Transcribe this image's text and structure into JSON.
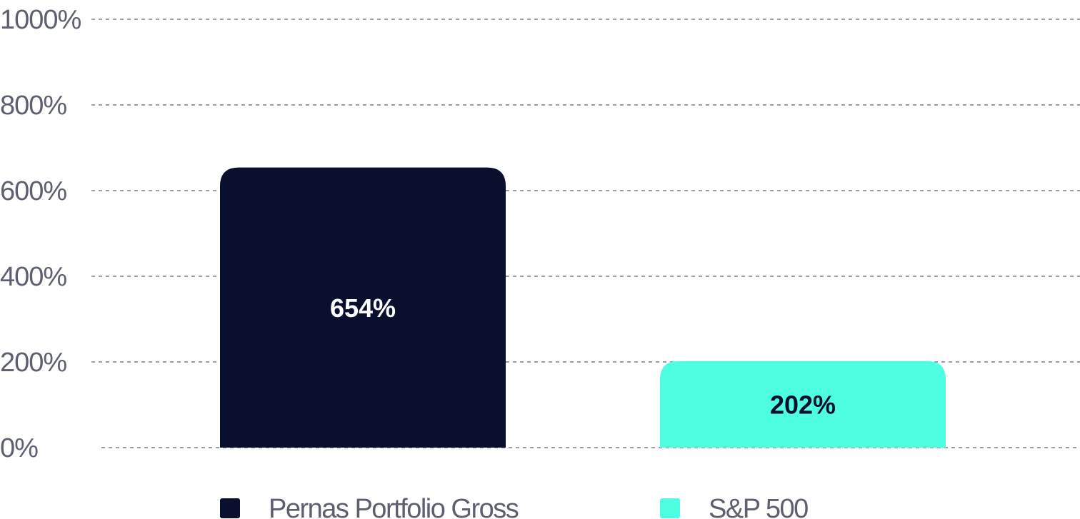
{
  "chart_data": {
    "type": "bar",
    "categories": [
      "Pernas Portfolio Gross",
      "S&P 500"
    ],
    "values": [
      654,
      202
    ],
    "value_labels": [
      "654%",
      "202%"
    ],
    "bar_colors": [
      "#0a0f2e",
      "#4dffe0"
    ],
    "label_colors": [
      "#ffffff",
      "#0a0f2e"
    ],
    "title": "",
    "xlabel": "",
    "ylabel": "",
    "ylim": [
      0,
      1000
    ],
    "yticks": [
      0,
      200,
      400,
      600,
      800,
      1000
    ],
    "ytick_labels": [
      "0%",
      "200%",
      "400%",
      "600%",
      "800%",
      "1000%"
    ],
    "grid": true,
    "grid_style": "dashed",
    "legend_position": "bottom",
    "legend": [
      {
        "label": "Pernas Portfolio Gross",
        "color": "#0a0f2e"
      },
      {
        "label": "S&P 500",
        "color": "#4dffe0"
      }
    ]
  }
}
